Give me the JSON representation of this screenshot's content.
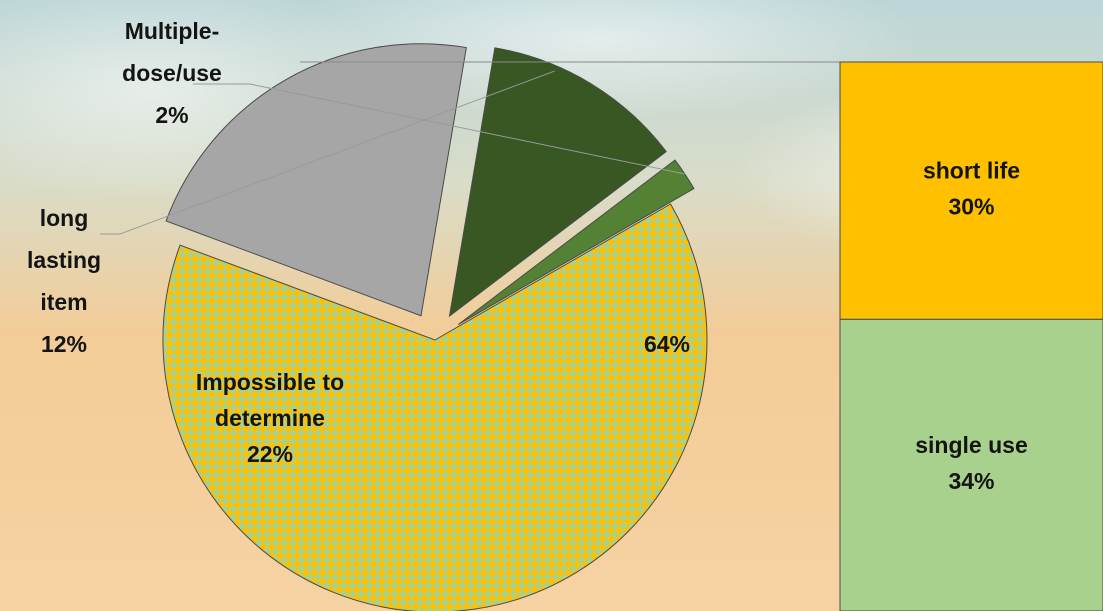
{
  "chart_data": {
    "type": "pie",
    "title": "",
    "slices": [
      {
        "label": "",
        "value": 64,
        "value_label": "64%",
        "pattern": "checker",
        "colors": [
          "#FFC000",
          "#A9D18E"
        ]
      },
      {
        "label": "Impossible to determine",
        "value": 22,
        "value_label": "22%",
        "color": "#A6A6A6"
      },
      {
        "label": "long lasting item",
        "value": 12,
        "value_label": "12%",
        "color": "#385723"
      },
      {
        "label": "Multiple-dose/use",
        "value": 2,
        "value_label": "2%",
        "color": "#548235"
      }
    ],
    "breakdown": {
      "of_slice": "64%",
      "type": "stacked_bar",
      "segments": [
        {
          "label": "short life",
          "value": 30,
          "value_label": "30%",
          "color": "#FFC000"
        },
        {
          "label": "single use",
          "value": 34,
          "value_label": "34%",
          "color": "#A9D18E"
        }
      ]
    },
    "legend": "none"
  }
}
